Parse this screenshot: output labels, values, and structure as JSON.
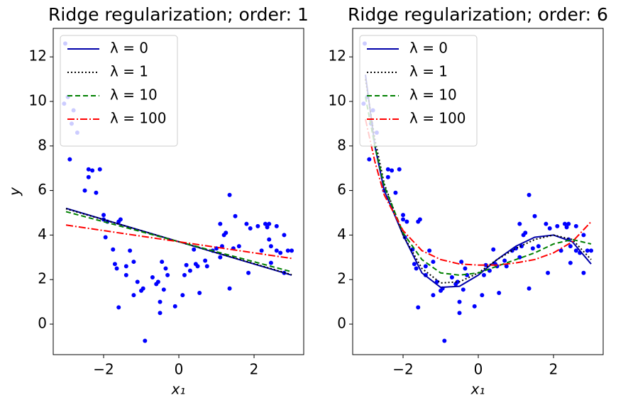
{
  "chart_data": [
    {
      "type": "line",
      "title": "Ridge regularization; order: 1",
      "xlabel": "x₁",
      "ylabel": "y",
      "xlim": [
        -3.34,
        3.32
      ],
      "ylim": [
        -1.37,
        13.28
      ],
      "xticks": [
        {
          "value": -2,
          "label": "−2"
        },
        0,
        2
      ],
      "yticks": [
        0,
        2,
        4,
        6,
        8,
        10,
        12
      ],
      "legend": "upper left",
      "points": {
        "color": "#0000ff",
        "x": [
          -3.02,
          -3.05,
          -2.95,
          -2.85,
          -2.8,
          -2.7,
          -2.9,
          -2.5,
          -2.4,
          -2.3,
          -2.4,
          -2.2,
          -2.1,
          -2.0,
          -2.0,
          -1.9,
          -1.95,
          -1.75,
          -1.7,
          -1.65,
          -1.55,
          -1.6,
          -1.6,
          -1.4,
          -1.4,
          -1.3,
          -1.2,
          -1.2,
          -1.1,
          -1.0,
          -0.95,
          -0.9,
          -0.7,
          -0.6,
          -0.55,
          -0.5,
          -0.5,
          -0.45,
          -0.35,
          -0.4,
          -0.3,
          -0.1,
          0.1,
          0.15,
          0.2,
          0.3,
          0.4,
          0.45,
          0.5,
          0.55,
          0.75,
          0.7,
          0.9,
          1.0,
          1.1,
          1.1,
          1.15,
          1.2,
          1.25,
          1.35,
          1.35,
          1.45,
          1.5,
          1.6,
          1.85,
          1.8,
          1.9,
          2.1,
          2.2,
          2.3,
          2.35,
          2.4,
          2.45,
          2.4,
          2.45,
          2.6,
          2.6,
          2.7,
          2.8,
          2.8,
          2.9,
          3.0
        ],
        "y": [
          12.6,
          9.9,
          10.2,
          9.0,
          9.6,
          8.6,
          7.4,
          6.0,
          6.95,
          6.9,
          6.6,
          5.9,
          6.95,
          4.9,
          4.7,
          4.6,
          3.9,
          3.35,
          2.7,
          2.5,
          4.7,
          4.6,
          0.75,
          2.6,
          2.2,
          3.3,
          2.8,
          1.3,
          1.9,
          1.5,
          1.6,
          -0.75,
          2.1,
          1.8,
          1.9,
          1.0,
          0.5,
          2.8,
          2.5,
          1.55,
          2.2,
          0.8,
          1.3,
          2.2,
          2.65,
          2.4,
          3.35,
          2.7,
          2.6,
          1.4,
          2.6,
          2.85,
          3.3,
          3.4,
          3.0,
          4.5,
          3.5,
          4.0,
          4.1,
          1.6,
          5.8,
          3.4,
          4.85,
          3.5,
          2.3,
          4.5,
          4.3,
          4.4,
          3.3,
          4.5,
          4.35,
          4.5,
          2.75,
          3.8,
          3.5,
          4.4,
          3.3,
          3.2,
          4.0,
          2.3,
          3.3,
          3.3
        ]
      },
      "series": [
        {
          "name": "λ = 0",
          "color": "#0000aa",
          "linestyle": "solid",
          "x": [
            -3,
            3
          ],
          "values": [
            5.2,
            2.2
          ]
        },
        {
          "name": "λ = 1",
          "color": "#000000",
          "linestyle": "dotted",
          "x": [
            -3,
            3
          ],
          "values": [
            5.18,
            2.22
          ]
        },
        {
          "name": "λ = 10",
          "color": "#008000",
          "linestyle": "dashed",
          "x": [
            -3,
            3
          ],
          "values": [
            5.05,
            2.35
          ]
        },
        {
          "name": "λ = 100",
          "color": "#ff0000",
          "linestyle": "dashdot",
          "x": [
            -3,
            3
          ],
          "values": [
            4.45,
            2.95
          ]
        }
      ]
    },
    {
      "type": "line",
      "title": "Ridge regularization; order: 6",
      "xlabel": "x₁",
      "xlim": [
        -3.34,
        3.32
      ],
      "ylim": [
        -1.37,
        13.28
      ],
      "xticks": [
        {
          "value": -2,
          "label": "−2"
        },
        0,
        2
      ],
      "yticks": [
        0,
        2,
        4,
        6,
        8,
        10,
        12
      ],
      "legend": "upper left",
      "points": {
        "color": "#0000ff",
        "x": [
          -3.02,
          -3.05,
          -2.95,
          -2.85,
          -2.8,
          -2.7,
          -2.9,
          -2.5,
          -2.4,
          -2.3,
          -2.4,
          -2.2,
          -2.1,
          -2.0,
          -2.0,
          -1.9,
          -1.95,
          -1.75,
          -1.7,
          -1.65,
          -1.55,
          -1.6,
          -1.6,
          -1.4,
          -1.4,
          -1.3,
          -1.2,
          -1.2,
          -1.1,
          -1.0,
          -0.95,
          -0.9,
          -0.7,
          -0.6,
          -0.55,
          -0.5,
          -0.5,
          -0.45,
          -0.35,
          -0.4,
          -0.3,
          -0.1,
          0.1,
          0.15,
          0.2,
          0.3,
          0.4,
          0.45,
          0.5,
          0.55,
          0.75,
          0.7,
          0.9,
          1.0,
          1.1,
          1.1,
          1.15,
          1.2,
          1.25,
          1.35,
          1.35,
          1.45,
          1.5,
          1.6,
          1.85,
          1.8,
          1.9,
          2.1,
          2.2,
          2.3,
          2.35,
          2.4,
          2.45,
          2.4,
          2.45,
          2.6,
          2.6,
          2.7,
          2.8,
          2.8,
          2.9,
          3.0
        ],
        "y": [
          12.6,
          9.9,
          10.2,
          9.0,
          9.6,
          8.6,
          7.4,
          6.0,
          6.95,
          6.9,
          6.6,
          5.9,
          6.95,
          4.9,
          4.7,
          4.6,
          3.9,
          3.35,
          2.7,
          2.5,
          4.7,
          4.6,
          0.75,
          2.6,
          2.2,
          3.3,
          2.8,
          1.3,
          1.9,
          1.5,
          1.6,
          -0.75,
          2.1,
          1.8,
          1.9,
          1.0,
          0.5,
          2.8,
          2.5,
          1.55,
          2.2,
          0.8,
          1.3,
          2.2,
          2.65,
          2.4,
          3.35,
          2.7,
          2.6,
          1.4,
          2.6,
          2.85,
          3.3,
          3.4,
          3.0,
          4.5,
          3.5,
          4.0,
          4.1,
          1.6,
          5.8,
          3.4,
          4.85,
          3.5,
          2.3,
          4.5,
          4.3,
          4.4,
          3.3,
          4.5,
          4.35,
          4.5,
          2.75,
          3.8,
          3.5,
          4.4,
          3.3,
          3.2,
          4.0,
          2.3,
          3.3,
          3.3
        ]
      },
      "series": [
        {
          "name": "λ = 0",
          "color": "#0000aa",
          "linestyle": "solid",
          "x": [
            -3,
            -2.75,
            -2.5,
            -2,
            -1.5,
            -1,
            -0.5,
            0,
            0.5,
            1,
            1.5,
            2,
            2.5,
            3
          ],
          "values": [
            11.2,
            8.0,
            6.0,
            4.0,
            2.3,
            1.65,
            1.7,
            2.2,
            2.9,
            3.5,
            3.9,
            4.0,
            3.7,
            2.7
          ]
        },
        {
          "name": "λ = 1",
          "color": "#000000",
          "linestyle": "dotted",
          "x": [
            -3,
            -2.75,
            -2.5,
            -2,
            -1.5,
            -1,
            -0.5,
            0,
            0.5,
            1,
            1.5,
            2,
            2.5,
            3
          ],
          "values": [
            11.0,
            8.3,
            6.3,
            4.0,
            2.5,
            1.85,
            1.9,
            2.3,
            2.9,
            3.4,
            3.8,
            4.0,
            3.8,
            2.9
          ]
        },
        {
          "name": "λ = 10",
          "color": "#008000",
          "linestyle": "dashed",
          "x": [
            -3,
            -2.75,
            -2.5,
            -2,
            -1.5,
            -1,
            -0.5,
            0,
            0.5,
            1,
            1.5,
            2,
            2.5,
            3
          ],
          "values": [
            10.2,
            8.0,
            6.2,
            4.1,
            2.9,
            2.3,
            2.2,
            2.3,
            2.6,
            2.9,
            3.2,
            3.6,
            3.8,
            3.6
          ]
        },
        {
          "name": "λ = 100",
          "color": "#ff0000",
          "linestyle": "dashdot",
          "x": [
            -3,
            -2.75,
            -2.5,
            -2,
            -1.5,
            -1,
            -0.5,
            0,
            0.5,
            1,
            1.5,
            2,
            2.5,
            3
          ],
          "values": [
            9.2,
            7.3,
            5.8,
            4.2,
            3.3,
            2.9,
            2.7,
            2.65,
            2.65,
            2.75,
            2.9,
            3.2,
            3.7,
            4.6
          ]
        }
      ]
    }
  ]
}
